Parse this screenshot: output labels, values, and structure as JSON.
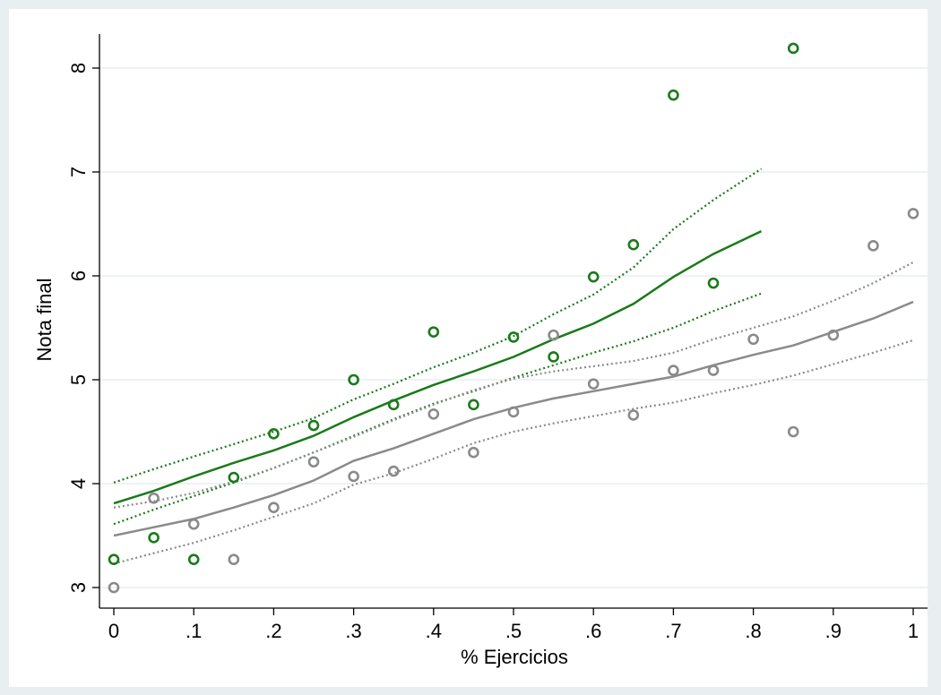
{
  "chart_data": {
    "type": "scatter",
    "title": "",
    "xlabel": "% Ejercicios",
    "ylabel": "Nota final",
    "xlim": [
      0,
      1
    ],
    "ylim": [
      3,
      8.25
    ],
    "x_ticks": [
      "0",
      ".1",
      ".2",
      ".3",
      ".4",
      ".5",
      ".6",
      ".7",
      ".8",
      ".9",
      "1"
    ],
    "y_ticks": [
      "3",
      "4",
      "5",
      "6",
      "7",
      "8"
    ],
    "grid": true,
    "legend": "none",
    "series": [
      {
        "kind": "scatter",
        "color": "#1a7a1a",
        "x": [
          0,
          0.05,
          0.1,
          0.15,
          0.2,
          0.25,
          0.3,
          0.35,
          0.4,
          0.45,
          0.5,
          0.55,
          0.6,
          0.65,
          0.7,
          0.75,
          0.85
        ],
        "y": [
          3.27,
          3.48,
          3.27,
          4.06,
          4.48,
          4.56,
          5.0,
          4.76,
          5.46,
          4.76,
          5.41,
          5.22,
          5.99,
          6.3,
          7.74,
          5.93,
          8.19
        ]
      },
      {
        "kind": "scatter",
        "color": "#8a8a8a",
        "x": [
          0,
          0.05,
          0.1,
          0.15,
          0.2,
          0.25,
          0.3,
          0.35,
          0.4,
          0.45,
          0.5,
          0.55,
          0.6,
          0.65,
          0.7,
          0.75,
          0.8,
          0.85,
          0.9,
          0.95,
          1.0
        ],
        "y": [
          3.0,
          3.86,
          3.61,
          3.27,
          3.77,
          4.21,
          4.07,
          4.12,
          4.67,
          4.3,
          4.69,
          5.43,
          4.96,
          4.66,
          5.09,
          5.09,
          5.39,
          4.5,
          5.43,
          6.29,
          6.6
        ]
      },
      {
        "kind": "line",
        "style": "solid",
        "color": "#1a7a1a",
        "x": [
          0,
          0.05,
          0.1,
          0.15,
          0.2,
          0.25,
          0.3,
          0.35,
          0.4,
          0.45,
          0.5,
          0.55,
          0.6,
          0.65,
          0.7,
          0.75,
          0.81
        ],
        "y": [
          3.81,
          3.93,
          4.07,
          4.2,
          4.32,
          4.46,
          4.64,
          4.8,
          4.95,
          5.08,
          5.22,
          5.39,
          5.54,
          5.73,
          5.99,
          6.21,
          6.43
        ]
      },
      {
        "kind": "line",
        "style": "dotted",
        "color": "#1a7a1a",
        "x": [
          0,
          0.05,
          0.1,
          0.15,
          0.2,
          0.25,
          0.3,
          0.35,
          0.4,
          0.45,
          0.5,
          0.55,
          0.6,
          0.65,
          0.7,
          0.75,
          0.81
        ],
        "y": [
          4.01,
          4.14,
          4.26,
          4.38,
          4.5,
          4.63,
          4.81,
          4.96,
          5.12,
          5.26,
          5.42,
          5.63,
          5.82,
          6.08,
          6.45,
          6.73,
          7.03
        ]
      },
      {
        "kind": "line",
        "style": "dotted",
        "color": "#1a7a1a",
        "x": [
          0,
          0.05,
          0.1,
          0.15,
          0.2,
          0.25,
          0.3,
          0.35,
          0.4,
          0.45,
          0.5,
          0.55,
          0.6,
          0.65,
          0.7,
          0.75,
          0.81
        ],
        "y": [
          3.61,
          3.75,
          3.88,
          4.01,
          4.15,
          4.3,
          4.46,
          4.62,
          4.77,
          4.89,
          5.02,
          5.14,
          5.26,
          5.37,
          5.5,
          5.66,
          5.83
        ]
      },
      {
        "kind": "line",
        "style": "solid",
        "color": "#8a8a8a",
        "x": [
          0,
          0.05,
          0.1,
          0.15,
          0.2,
          0.25,
          0.3,
          0.35,
          0.4,
          0.45,
          0.5,
          0.55,
          0.6,
          0.65,
          0.7,
          0.75,
          0.8,
          0.85,
          0.9,
          0.95,
          1.0
        ],
        "y": [
          3.5,
          3.58,
          3.66,
          3.77,
          3.89,
          4.03,
          4.22,
          4.34,
          4.48,
          4.62,
          4.73,
          4.82,
          4.89,
          4.96,
          5.03,
          5.14,
          5.24,
          5.33,
          5.46,
          5.59,
          5.75
        ]
      },
      {
        "kind": "line",
        "style": "dotted",
        "color": "#8a8a8a",
        "x": [
          0,
          0.05,
          0.1,
          0.15,
          0.2,
          0.25,
          0.3,
          0.35,
          0.4,
          0.45,
          0.5,
          0.55,
          0.6,
          0.65,
          0.7,
          0.75,
          0.8,
          0.85,
          0.9,
          0.95,
          1.0
        ],
        "y": [
          3.77,
          3.83,
          3.91,
          4.02,
          4.15,
          4.3,
          4.45,
          4.61,
          4.76,
          4.9,
          5.01,
          5.08,
          5.13,
          5.18,
          5.26,
          5.39,
          5.5,
          5.61,
          5.76,
          5.93,
          6.13
        ]
      },
      {
        "kind": "line",
        "style": "dotted",
        "color": "#8a8a8a",
        "x": [
          0,
          0.05,
          0.1,
          0.15,
          0.2,
          0.25,
          0.3,
          0.35,
          0.4,
          0.45,
          0.5,
          0.55,
          0.6,
          0.65,
          0.7,
          0.75,
          0.8,
          0.85,
          0.9,
          0.95,
          1.0
        ],
        "y": [
          3.23,
          3.33,
          3.43,
          3.55,
          3.68,
          3.81,
          3.99,
          4.1,
          4.24,
          4.39,
          4.5,
          4.58,
          4.65,
          4.72,
          4.78,
          4.87,
          4.95,
          5.04,
          5.15,
          5.26,
          5.38
        ]
      }
    ]
  }
}
